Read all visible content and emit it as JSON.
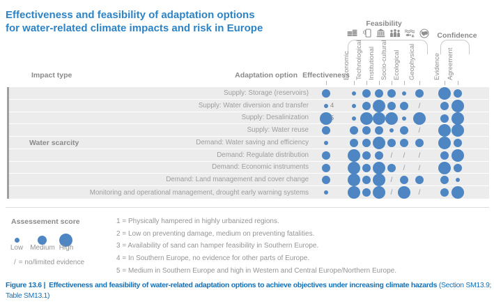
{
  "title": {
    "line1": "Effectiveness and feasibility of adaptation options",
    "line2": "for water-related climate impacts and risk in Europe"
  },
  "matrix_header": {
    "impact_type": "Impact type",
    "adaptation_option": "Adaptation option",
    "effectiveness": "Effectiveness",
    "feasibility": "Feasibility",
    "confidence": "Confidence",
    "feasibility_columns": [
      "Economic",
      "Technological",
      "Institutional",
      "Socio-cultural",
      "Ecological",
      "Geophysical"
    ],
    "confidence_columns": [
      "Evidence",
      "Agreement"
    ],
    "feasibility_icons": [
      "coins-icon",
      "mobile-signal-icon",
      "bank-icon",
      "people-icon",
      "water-ecosystem-icon",
      "globe-icon"
    ]
  },
  "impact_group": "Water scarcity",
  "legend": {
    "title": "Assessement score",
    "sizes": [
      "Low",
      "Medium",
      "High"
    ],
    "no_evidence_slash": "/",
    "no_evidence_text": "= no/limited evidence"
  },
  "footnotes": {
    "items": [
      "1 = Physically hampered in highly urbanized regions.",
      "2 = Low on preventing damage, medium on preventing fatalities.",
      "3 = Availability of sand can hamper feasibility in Southern Europe.",
      "4 = In Southern Europe, no evidence for other parts of Europe.",
      "5 = Medium in Southern Europe and high in Western and Central Europe/Northern Europe."
    ]
  },
  "caption": {
    "label": "Figure 13.6 |",
    "title": "Effectiveness and feasibility of water-related adaptation options to achieve objectives under increasing climate hazards",
    "source": "(Section SM13.9; Table SM13.1)"
  },
  "colors": {
    "dot_blue": "#4d86c3",
    "title_blue": "#2c83c6",
    "caption_blue": "#1371b8",
    "label_gray": "#8a8a8a",
    "text_gray": "#959595",
    "grid_bg": "#ececec",
    "grid_bar": "#a0a0a0",
    "slash_gray": "#8b9bab",
    "bracket_gray": "#c9c9c9"
  },
  "chart_data": {
    "type": "dot-matrix",
    "title": "Effectiveness and feasibility of adaptation options for water-related climate impacts and risk in Europe",
    "size_scale": {
      "low": "Low",
      "medium": "Medium",
      "high": "High",
      "/": "no/limited evidence"
    },
    "impact_type": "Water scarcity",
    "columns": [
      "Effectiveness",
      "Economic",
      "Technological",
      "Institutional",
      "Socio-cultural",
      "Ecological",
      "Geophysical",
      "Evidence",
      "Agreement"
    ],
    "column_groups": {
      "Feasibility": [
        "Economic",
        "Technological",
        "Institutional",
        "Socio-cultural",
        "Ecological",
        "Geophysical"
      ],
      "Confidence": [
        "Evidence",
        "Agreement"
      ]
    },
    "rows": [
      {
        "option": "Supply: Storage (reservoirs)",
        "note": "",
        "effectiveness": "medium",
        "economic": "low",
        "technological": "medium",
        "institutional": "medium",
        "socio_cultural": "medium",
        "ecological": "low",
        "geophysical": "medium",
        "evidence": "high",
        "agreement": "medium"
      },
      {
        "option": "Supply: Water diversion and transfer",
        "note": "4",
        "effectiveness": "low",
        "economic": "low",
        "technological": "medium",
        "institutional": "high",
        "socio_cultural": "medium",
        "ecological": "medium",
        "geophysical": "/",
        "evidence": "medium",
        "agreement": "high"
      },
      {
        "option": "Supply: Desalinization",
        "note": "5",
        "effectiveness": "high",
        "economic": "low",
        "technological": "high",
        "institutional": "high",
        "socio_cultural": "high",
        "ecological": "low",
        "geophysical": "high",
        "evidence": "medium",
        "agreement": "high"
      },
      {
        "option": "Supply: Water reuse",
        "note": "",
        "effectiveness": "medium",
        "economic": "medium",
        "technological": "medium",
        "institutional": "medium",
        "socio_cultural": "low",
        "ecological": "medium",
        "geophysical": "/",
        "evidence": "high",
        "agreement": "high"
      },
      {
        "option": "Demand: Water saving and efficiency",
        "note": "",
        "effectiveness": "low",
        "economic": "medium",
        "technological": "medium",
        "institutional": "high",
        "socio_cultural": "medium",
        "ecological": "medium",
        "geophysical": "medium",
        "evidence": "high",
        "agreement": "medium"
      },
      {
        "option": "Demand: Regulate distribution",
        "note": "",
        "effectiveness": "medium",
        "economic": "high",
        "technological": "medium",
        "institutional": "medium",
        "socio_cultural": "/",
        "ecological": "/",
        "geophysical": "/",
        "evidence": "medium",
        "agreement": "high"
      },
      {
        "option": "Demand: Economic instruments",
        "note": "",
        "effectiveness": "medium",
        "economic": "high",
        "technological": "medium",
        "institutional": "high",
        "socio_cultural": "medium",
        "ecological": "/",
        "geophysical": "/",
        "evidence": "high",
        "agreement": "medium"
      },
      {
        "option": "Demand: Land management and cover change",
        "note": "",
        "effectiveness": "medium",
        "economic": "high",
        "technological": "medium",
        "institutional": "high",
        "socio_cultural": "/",
        "ecological": "medium",
        "geophysical": "medium",
        "evidence": "medium",
        "agreement": "low"
      },
      {
        "option": "Monitoring and operational management, drought early warning systems",
        "note": "",
        "effectiveness": "low",
        "economic": "high",
        "technological": "medium",
        "institutional": "high",
        "socio_cultural": "/",
        "ecological": "high",
        "geophysical": "/",
        "evidence": "medium",
        "agreement": "high"
      }
    ]
  }
}
